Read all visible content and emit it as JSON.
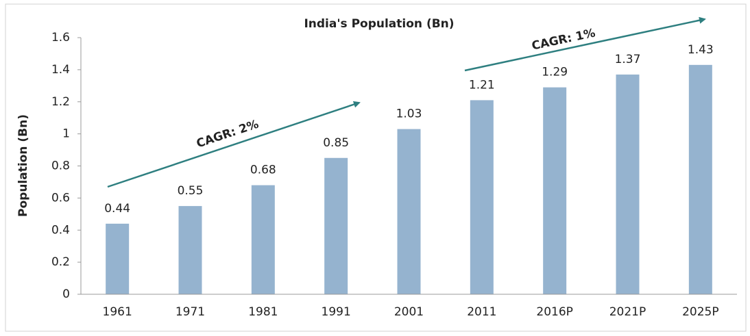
{
  "chart_data": {
    "type": "bar",
    "title": "India's Population (Bn)",
    "y_label": "Population (Bn)",
    "categories": [
      "1961",
      "1971",
      "1981",
      "1991",
      "2001",
      "2011",
      "2016P",
      "2021P",
      "2025P"
    ],
    "values": [
      0.44,
      0.55,
      0.68,
      0.85,
      1.03,
      1.21,
      1.29,
      1.37,
      1.43
    ],
    "color": "#95b3cf",
    "ylim": [
      0,
      1.6
    ],
    "yticks": [
      0,
      0.2,
      0.4,
      0.6,
      0.8,
      1,
      1.2,
      1.4,
      1.6
    ],
    "grid": false,
    "annotations": [
      "CAGR: 2%",
      "CAGR: 1%"
    ]
  }
}
